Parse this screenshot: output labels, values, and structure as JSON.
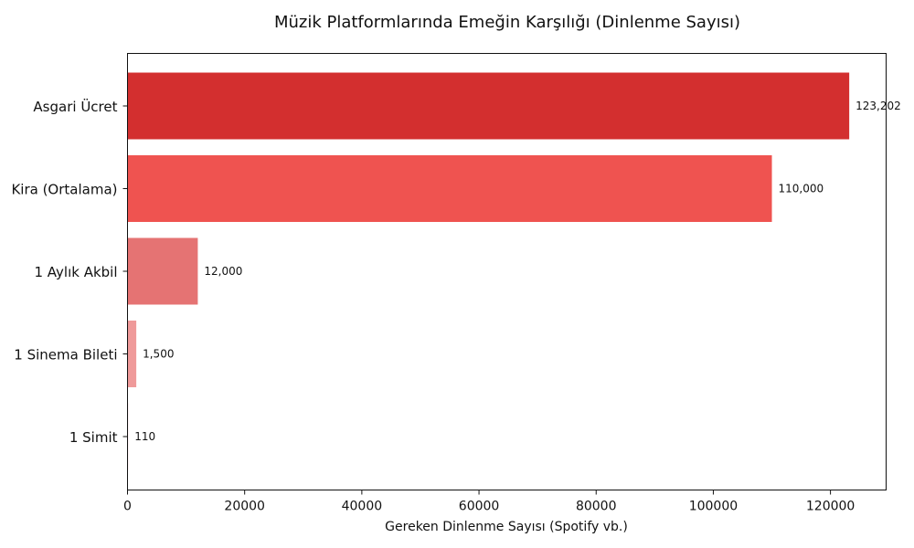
{
  "chart_data": {
    "type": "bar",
    "orientation": "horizontal",
    "title": "Müzik Platformlarında Emeğin Karşılığı (Dinlenme Sayısı)",
    "xlabel": "Gereken Dinlenme Sayısı (Spotify vb.)",
    "ylabel": "",
    "categories": [
      "Asgari Ücret",
      "Kira (Ortalama)",
      "1 Aylık Akbil",
      "1 Sinema Bileti",
      "1 Simit"
    ],
    "values": [
      123202,
      110000,
      12000,
      1500,
      110
    ],
    "value_labels": [
      "123,202",
      "110,000",
      "12,000",
      "1,500",
      "110"
    ],
    "colors": [
      "#d32f2f",
      "#ef5350",
      "#e57373",
      "#ef9a9a",
      "#ffcdd2"
    ],
    "xlim": [
      0,
      129500
    ],
    "xticks": [
      0,
      20000,
      40000,
      60000,
      80000,
      100000,
      120000
    ],
    "xtick_labels": [
      "0",
      "20000",
      "40000",
      "60000",
      "80000",
      "100000",
      "120000"
    ],
    "grid": false,
    "legend": "none"
  }
}
